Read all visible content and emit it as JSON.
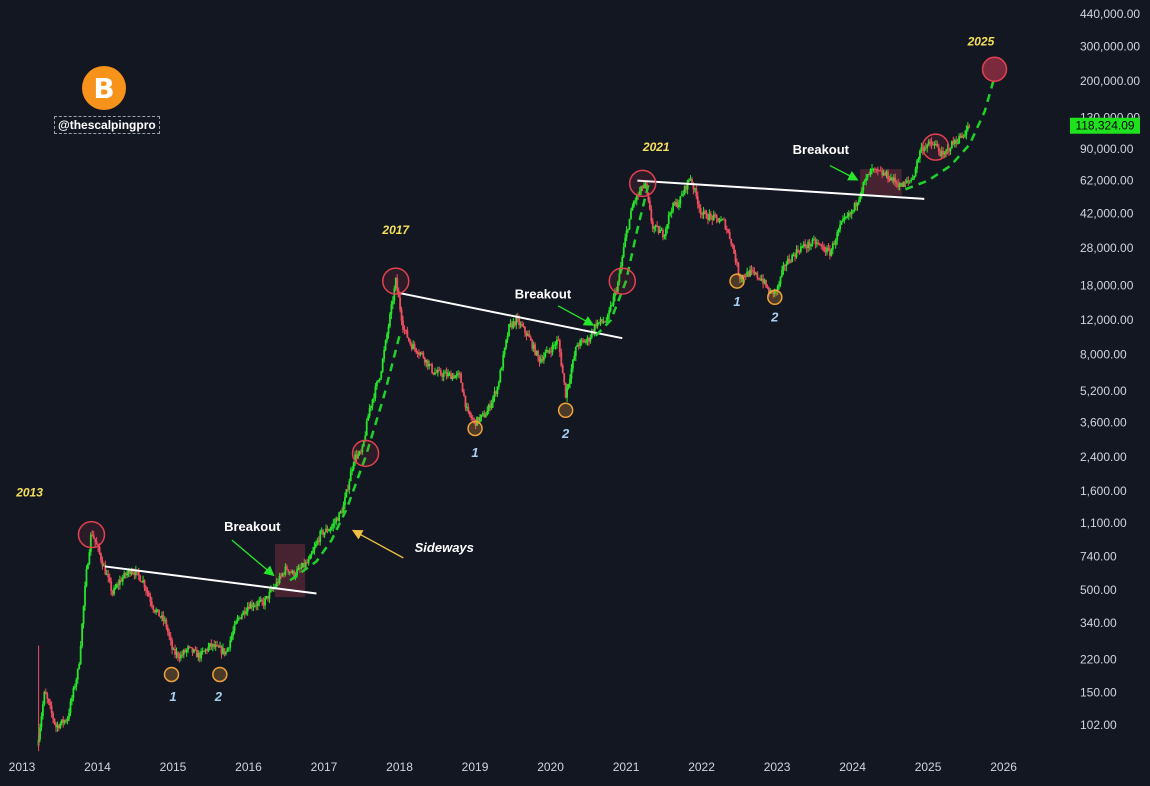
{
  "brand": {
    "logo_symbol": "B",
    "handle": "@thescalpingpro",
    "logo_color": "#f7931a"
  },
  "colors": {
    "up": "#26e52a",
    "down": "#ef4f5f",
    "background": "#131722",
    "price_badge": "#1fe21f",
    "annotation_yellow": "#f5e05a",
    "number_blue": "#a9cff0",
    "circle_red": "#e2414f",
    "circle_orange": "#f0a23a"
  },
  "chart_data": {
    "type": "candlestick",
    "title": "",
    "y_scale": "log",
    "ylim": [
      70,
      520000
    ],
    "xlim": [
      2013.0,
      2026.35
    ],
    "x_ticks": [
      "2013",
      "2014",
      "2015",
      "2016",
      "2017",
      "2018",
      "2019",
      "2020",
      "2021",
      "2022",
      "2023",
      "2024",
      "2025",
      "2026"
    ],
    "y_ticks": [
      "102.00",
      "150.00",
      "220.00",
      "340.00",
      "500.00",
      "740.00",
      "1,100.00",
      "1,600.00",
      "2,400.00",
      "3,600.00",
      "5,200.00",
      "8,000.00",
      "12,000.00",
      "18,000.00",
      "28,000.00",
      "42,000.00",
      "62,000.00",
      "90,000.00",
      "130,000.00",
      "200,000.00",
      "300,000.00",
      "440,000.00"
    ],
    "last_price": {
      "value": 118324.09,
      "label": "118,324.09"
    },
    "price_path": [
      [
        2013.2,
        80
      ],
      [
        2013.3,
        150
      ],
      [
        2013.45,
        100
      ],
      [
        2013.6,
        110
      ],
      [
        2013.75,
        200
      ],
      [
        2013.85,
        600
      ],
      [
        2013.92,
        1000
      ],
      [
        2014.0,
        820
      ],
      [
        2014.1,
        630
      ],
      [
        2014.2,
        480
      ],
      [
        2014.3,
        560
      ],
      [
        2014.45,
        640
      ],
      [
        2014.6,
        560
      ],
      [
        2014.75,
        400
      ],
      [
        2014.9,
        340
      ],
      [
        2015.0,
        240
      ],
      [
        2015.1,
        230
      ],
      [
        2015.2,
        250
      ],
      [
        2015.35,
        230
      ],
      [
        2015.5,
        260
      ],
      [
        2015.7,
        240
      ],
      [
        2015.85,
        350
      ],
      [
        2016.0,
        420
      ],
      [
        2016.2,
        430
      ],
      [
        2016.4,
        560
      ],
      [
        2016.5,
        650
      ],
      [
        2016.6,
        600
      ],
      [
        2016.8,
        700
      ],
      [
        2016.95,
        960
      ],
      [
        2017.1,
        1050
      ],
      [
        2017.25,
        1300
      ],
      [
        2017.4,
        2400
      ],
      [
        2017.5,
        2500
      ],
      [
        2017.6,
        4200
      ],
      [
        2017.75,
        6500
      ],
      [
        2017.85,
        11000
      ],
      [
        2017.95,
        19000
      ],
      [
        2018.05,
        11000
      ],
      [
        2018.15,
        9000
      ],
      [
        2018.3,
        8000
      ],
      [
        2018.45,
        6500
      ],
      [
        2018.6,
        6300
      ],
      [
        2018.8,
        6200
      ],
      [
        2018.9,
        4000
      ],
      [
        2019.0,
        3600
      ],
      [
        2019.15,
        4000
      ],
      [
        2019.3,
        5500
      ],
      [
        2019.45,
        11000
      ],
      [
        2019.55,
        12000
      ],
      [
        2019.7,
        10000
      ],
      [
        2019.85,
        7500
      ],
      [
        2020.0,
        8500
      ],
      [
        2020.1,
        9500
      ],
      [
        2020.2,
        5000
      ],
      [
        2020.35,
        9000
      ],
      [
        2020.5,
        9500
      ],
      [
        2020.6,
        11500
      ],
      [
        2020.75,
        12000
      ],
      [
        2020.9,
        19000
      ],
      [
        2021.0,
        33000
      ],
      [
        2021.1,
        48000
      ],
      [
        2021.25,
        60000
      ],
      [
        2021.35,
        36000
      ],
      [
        2021.5,
        33000
      ],
      [
        2021.6,
        45000
      ],
      [
        2021.7,
        48000
      ],
      [
        2021.85,
        65000
      ],
      [
        2022.0,
        42000
      ],
      [
        2022.15,
        40000
      ],
      [
        2022.3,
        38000
      ],
      [
        2022.4,
        30000
      ],
      [
        2022.5,
        20000
      ],
      [
        2022.65,
        21000
      ],
      [
        2022.8,
        19500
      ],
      [
        2022.9,
        16500
      ],
      [
        2023.0,
        17000
      ],
      [
        2023.1,
        23000
      ],
      [
        2023.3,
        28000
      ],
      [
        2023.5,
        30000
      ],
      [
        2023.7,
        26500
      ],
      [
        2023.85,
        37000
      ],
      [
        2024.0,
        43000
      ],
      [
        2024.15,
        60000
      ],
      [
        2024.25,
        70000
      ],
      [
        2024.45,
        66000
      ],
      [
        2024.65,
        58000
      ],
      [
        2024.8,
        64000
      ],
      [
        2024.9,
        90000
      ],
      [
        2025.0,
        95000
      ],
      [
        2025.1,
        94000
      ],
      [
        2025.2,
        82000
      ],
      [
        2025.3,
        94000
      ],
      [
        2025.45,
        105000
      ],
      [
        2025.55,
        118324
      ]
    ],
    "resistance_lines": [
      {
        "from": [
          2014.1,
          660
        ],
        "to": [
          2016.9,
          480
        ]
      },
      {
        "from": [
          2018.0,
          16500
        ],
        "to": [
          2020.95,
          9700
        ]
      },
      {
        "from": [
          2021.15,
          62000
        ],
        "to": [
          2024.95,
          50000
        ]
      }
    ],
    "projection_curves": [
      {
        "points": [
          [
            2016.55,
            560
          ],
          [
            2016.9,
            700
          ],
          [
            2017.1,
            900
          ],
          [
            2017.3,
            1300
          ],
          [
            2017.55,
            2400
          ],
          [
            2017.8,
            5000
          ],
          [
            2018.0,
            10000
          ]
        ]
      },
      {
        "points": [
          [
            2020.6,
            10000
          ],
          [
            2020.8,
            12000
          ],
          [
            2021.0,
            19000
          ],
          [
            2021.15,
            35000
          ],
          [
            2021.3,
            60000
          ]
        ]
      },
      {
        "points": [
          [
            2024.7,
            56000
          ],
          [
            2025.0,
            62000
          ],
          [
            2025.3,
            74000
          ],
          [
            2025.55,
            95000
          ],
          [
            2025.75,
            140000
          ],
          [
            2025.88,
            210000
          ]
        ]
      }
    ],
    "top_circles": [
      {
        "x": 2013.92,
        "y": 960
      },
      {
        "x": 2017.55,
        "y": 2500
      },
      {
        "x": 2017.95,
        "y": 19000
      },
      {
        "x": 2020.95,
        "y": 19000
      },
      {
        "x": 2021.22,
        "y": 60000
      },
      {
        "x": 2025.1,
        "y": 92000
      },
      {
        "x": 2025.88,
        "y": 230000,
        "filled": true
      }
    ],
    "bottom_circles": [
      {
        "x": 2014.98,
        "y": 185
      },
      {
        "x": 2015.62,
        "y": 185
      },
      {
        "x": 2019.0,
        "y": 3350
      },
      {
        "x": 2020.2,
        "y": 4150
      },
      {
        "x": 2022.47,
        "y": 19000
      },
      {
        "x": 2022.97,
        "y": 15700
      }
    ],
    "highlight_boxes": [
      {
        "x0": 2016.35,
        "x1": 2016.75,
        "y0": 460,
        "y1": 860
      },
      {
        "x0": 2024.1,
        "x1": 2024.65,
        "y0": 52000,
        "y1": 71000
      }
    ],
    "year_labels": [
      {
        "text": "2013",
        "x": 2013.1,
        "y": 1500
      },
      {
        "text": "2017",
        "x": 2017.95,
        "y": 33000
      },
      {
        "text": "2021",
        "x": 2021.4,
        "y": 88000
      },
      {
        "text": "2025",
        "x": 2025.7,
        "y": 305000
      }
    ],
    "breakout_labels": [
      {
        "text": "Breakout",
        "x": 2016.05,
        "y": 1000
      },
      {
        "text": "Breakout",
        "x": 2019.9,
        "y": 15500
      },
      {
        "text": "Breakout",
        "x": 2023.58,
        "y": 85000
      }
    ],
    "number_labels": [
      {
        "text": "1",
        "x": 2015.0,
        "y": 135
      },
      {
        "text": "2",
        "x": 2015.6,
        "y": 135
      },
      {
        "text": "1",
        "x": 2019.0,
        "y": 2400
      },
      {
        "text": "2",
        "x": 2020.2,
        "y": 3000
      },
      {
        "text": "1",
        "x": 2022.47,
        "y": 14200
      },
      {
        "text": "2",
        "x": 2022.97,
        "y": 11800
      }
    ],
    "sideways": {
      "text": "Sideways",
      "x": 2018.2,
      "y": 780
    }
  }
}
